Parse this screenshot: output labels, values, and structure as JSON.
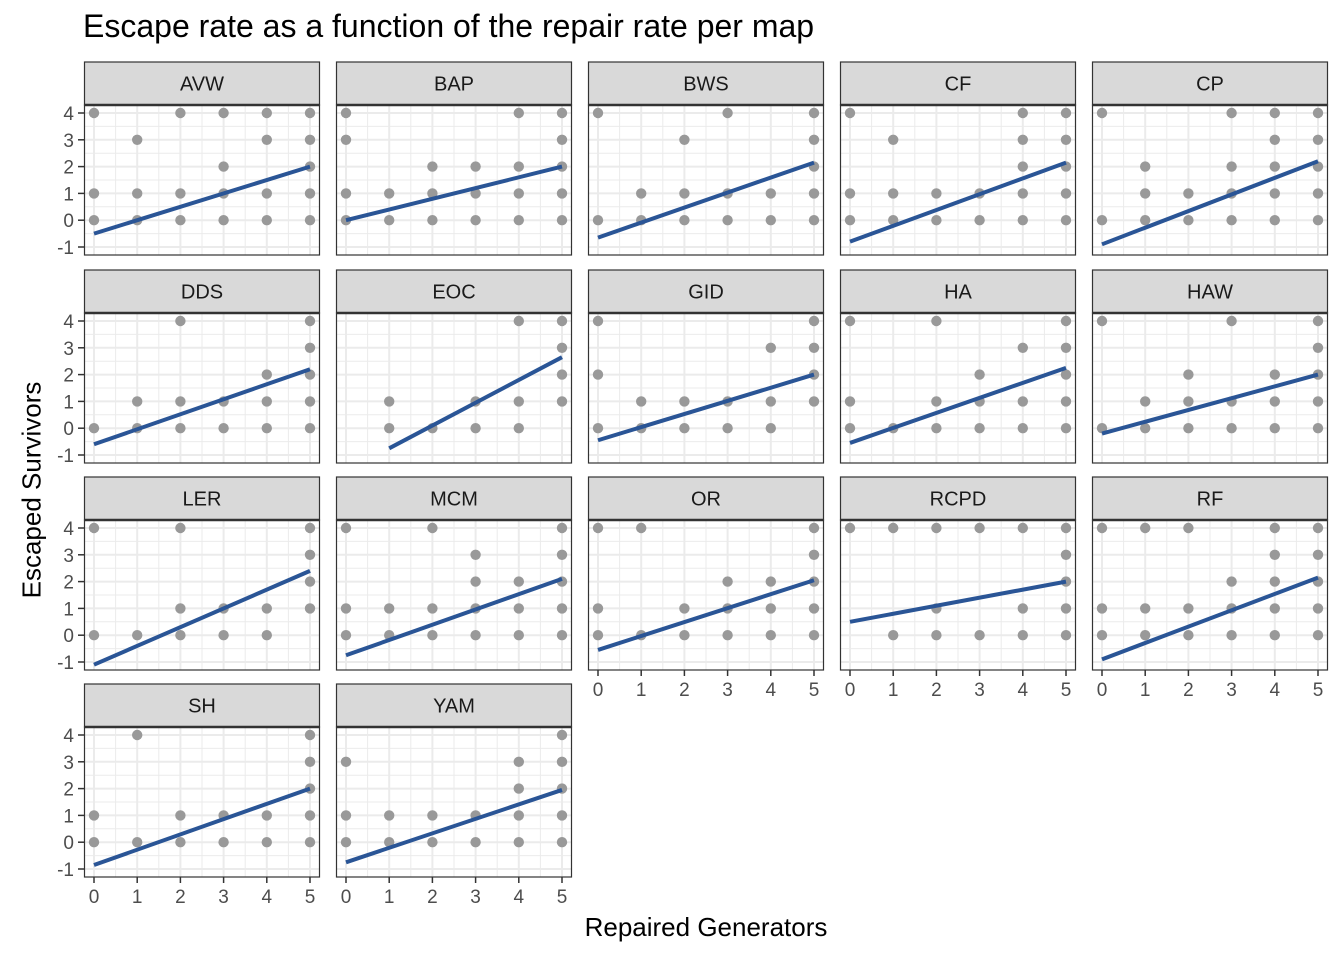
{
  "title": "Escape rate as a function of the repair rate per map",
  "xlabel": "Repaired Generators",
  "ylabel": "Escaped Survivors",
  "colors": {
    "point": "#999999",
    "line": "#2a5596",
    "strip": "#d9d9d9",
    "grid": "#ebebeb",
    "frame": "#333333"
  },
  "chart_data": {
    "type": "scatter",
    "facet_by": "map",
    "xlim": [
      0,
      5
    ],
    "ylim": [
      -1,
      4
    ],
    "x_ticks": [
      0,
      1,
      2,
      3,
      4,
      5
    ],
    "y_ticks": [
      -1,
      0,
      1,
      2,
      3,
      4
    ],
    "grid": true,
    "fit": "linear",
    "panels": [
      {
        "name": "AVW",
        "fit": [
          -0.5,
          2.0
        ],
        "points": [
          [
            0,
            4
          ],
          [
            0,
            1
          ],
          [
            0,
            0
          ],
          [
            1,
            3
          ],
          [
            1,
            1
          ],
          [
            1,
            0
          ],
          [
            2,
            4
          ],
          [
            2,
            1
          ],
          [
            2,
            0
          ],
          [
            3,
            4
          ],
          [
            3,
            2
          ],
          [
            3,
            1
          ],
          [
            3,
            0
          ],
          [
            4,
            4
          ],
          [
            4,
            3
          ],
          [
            4,
            1
          ],
          [
            4,
            0
          ],
          [
            5,
            4
          ],
          [
            5,
            3
          ],
          [
            5,
            2
          ],
          [
            5,
            1
          ],
          [
            5,
            0
          ]
        ]
      },
      {
        "name": "BAP",
        "fit": [
          0.0,
          2.0
        ],
        "points": [
          [
            0,
            4
          ],
          [
            0,
            3
          ],
          [
            0,
            1
          ],
          [
            0,
            0
          ],
          [
            1,
            1
          ],
          [
            1,
            0
          ],
          [
            2,
            2
          ],
          [
            2,
            1
          ],
          [
            2,
            0
          ],
          [
            3,
            2
          ],
          [
            3,
            1
          ],
          [
            3,
            0
          ],
          [
            4,
            4
          ],
          [
            4,
            2
          ],
          [
            4,
            1
          ],
          [
            4,
            0
          ],
          [
            5,
            4
          ],
          [
            5,
            3
          ],
          [
            5,
            2
          ],
          [
            5,
            1
          ],
          [
            5,
            0
          ]
        ]
      },
      {
        "name": "BWS",
        "fit": [
          -0.65,
          2.15
        ],
        "points": [
          [
            0,
            4
          ],
          [
            0,
            0
          ],
          [
            1,
            1
          ],
          [
            1,
            0
          ],
          [
            2,
            3
          ],
          [
            2,
            1
          ],
          [
            2,
            0
          ],
          [
            3,
            4
          ],
          [
            3,
            1
          ],
          [
            3,
            0
          ],
          [
            4,
            1
          ],
          [
            4,
            0
          ],
          [
            5,
            4
          ],
          [
            5,
            3
          ],
          [
            5,
            2
          ],
          [
            5,
            1
          ],
          [
            5,
            0
          ]
        ]
      },
      {
        "name": "CF",
        "fit": [
          -0.8,
          2.15
        ],
        "points": [
          [
            0,
            4
          ],
          [
            0,
            1
          ],
          [
            0,
            0
          ],
          [
            1,
            3
          ],
          [
            1,
            1
          ],
          [
            1,
            0
          ],
          [
            2,
            1
          ],
          [
            2,
            0
          ],
          [
            3,
            1
          ],
          [
            3,
            0
          ],
          [
            4,
            4
          ],
          [
            4,
            3
          ],
          [
            4,
            2
          ],
          [
            4,
            1
          ],
          [
            4,
            0
          ],
          [
            5,
            4
          ],
          [
            5,
            3
          ],
          [
            5,
            2
          ],
          [
            5,
            1
          ],
          [
            5,
            0
          ]
        ]
      },
      {
        "name": "CP",
        "fit": [
          -0.9,
          2.2
        ],
        "points": [
          [
            0,
            4
          ],
          [
            0,
            0
          ],
          [
            1,
            2
          ],
          [
            1,
            1
          ],
          [
            1,
            0
          ],
          [
            2,
            1
          ],
          [
            2,
            0
          ],
          [
            3,
            4
          ],
          [
            3,
            2
          ],
          [
            3,
            1
          ],
          [
            3,
            0
          ],
          [
            4,
            4
          ],
          [
            4,
            3
          ],
          [
            4,
            2
          ],
          [
            4,
            1
          ],
          [
            4,
            0
          ],
          [
            5,
            4
          ],
          [
            5,
            3
          ],
          [
            5,
            2
          ],
          [
            5,
            1
          ],
          [
            5,
            0
          ]
        ]
      },
      {
        "name": "DDS",
        "fit": [
          -0.6,
          2.2
        ],
        "points": [
          [
            0,
            0
          ],
          [
            1,
            1
          ],
          [
            1,
            0
          ],
          [
            2,
            4
          ],
          [
            2,
            1
          ],
          [
            2,
            0
          ],
          [
            3,
            1
          ],
          [
            3,
            0
          ],
          [
            4,
            2
          ],
          [
            4,
            1
          ],
          [
            4,
            0
          ],
          [
            5,
            4
          ],
          [
            5,
            3
          ],
          [
            5,
            2
          ],
          [
            5,
            1
          ],
          [
            5,
            0
          ]
        ]
      },
      {
        "name": "EOC",
        "fit_x": [
          1,
          5
        ],
        "fit": [
          -0.75,
          2.65
        ],
        "points": [
          [
            1,
            1
          ],
          [
            1,
            0
          ],
          [
            2,
            0
          ],
          [
            3,
            1
          ],
          [
            3,
            0
          ],
          [
            4,
            4
          ],
          [
            4,
            1
          ],
          [
            4,
            0
          ],
          [
            5,
            4
          ],
          [
            5,
            3
          ],
          [
            5,
            2
          ],
          [
            5,
            1
          ]
        ]
      },
      {
        "name": "GID",
        "fit": [
          -0.45,
          2.0
        ],
        "points": [
          [
            0,
            4
          ],
          [
            0,
            2
          ],
          [
            0,
            0
          ],
          [
            1,
            1
          ],
          [
            1,
            0
          ],
          [
            2,
            1
          ],
          [
            2,
            0
          ],
          [
            3,
            1
          ],
          [
            3,
            0
          ],
          [
            4,
            3
          ],
          [
            4,
            1
          ],
          [
            4,
            0
          ],
          [
            5,
            4
          ],
          [
            5,
            3
          ],
          [
            5,
            2
          ],
          [
            5,
            1
          ]
        ]
      },
      {
        "name": "HA",
        "fit": [
          -0.55,
          2.25
        ],
        "points": [
          [
            0,
            4
          ],
          [
            0,
            1
          ],
          [
            0,
            0
          ],
          [
            1,
            0
          ],
          [
            2,
            4
          ],
          [
            2,
            1
          ],
          [
            2,
            0
          ],
          [
            3,
            2
          ],
          [
            3,
            1
          ],
          [
            3,
            0
          ],
          [
            4,
            3
          ],
          [
            4,
            1
          ],
          [
            4,
            0
          ],
          [
            5,
            4
          ],
          [
            5,
            3
          ],
          [
            5,
            2
          ],
          [
            5,
            1
          ],
          [
            5,
            0
          ]
        ]
      },
      {
        "name": "HAW",
        "fit": [
          -0.2,
          2.0
        ],
        "points": [
          [
            0,
            4
          ],
          [
            0,
            0
          ],
          [
            1,
            1
          ],
          [
            1,
            0
          ],
          [
            2,
            2
          ],
          [
            2,
            1
          ],
          [
            2,
            0
          ],
          [
            3,
            4
          ],
          [
            3,
            1
          ],
          [
            3,
            0
          ],
          [
            4,
            2
          ],
          [
            4,
            1
          ],
          [
            4,
            0
          ],
          [
            5,
            4
          ],
          [
            5,
            3
          ],
          [
            5,
            2
          ],
          [
            5,
            1
          ],
          [
            5,
            0
          ]
        ]
      },
      {
        "name": "LER",
        "fit": [
          -1.1,
          2.4
        ],
        "points": [
          [
            0,
            4
          ],
          [
            0,
            0
          ],
          [
            1,
            0
          ],
          [
            2,
            4
          ],
          [
            2,
            1
          ],
          [
            2,
            0
          ],
          [
            3,
            1
          ],
          [
            3,
            0
          ],
          [
            4,
            1
          ],
          [
            4,
            0
          ],
          [
            5,
            4
          ],
          [
            5,
            3
          ],
          [
            5,
            2
          ],
          [
            5,
            1
          ]
        ]
      },
      {
        "name": "MCM",
        "fit": [
          -0.75,
          2.1
        ],
        "points": [
          [
            0,
            4
          ],
          [
            0,
            1
          ],
          [
            0,
            0
          ],
          [
            1,
            1
          ],
          [
            1,
            0
          ],
          [
            2,
            4
          ],
          [
            2,
            1
          ],
          [
            2,
            0
          ],
          [
            3,
            3
          ],
          [
            3,
            2
          ],
          [
            3,
            1
          ],
          [
            3,
            0
          ],
          [
            4,
            2
          ],
          [
            4,
            1
          ],
          [
            4,
            0
          ],
          [
            5,
            4
          ],
          [
            5,
            3
          ],
          [
            5,
            2
          ],
          [
            5,
            1
          ],
          [
            5,
            0
          ]
        ]
      },
      {
        "name": "OR",
        "fit": [
          -0.55,
          2.05
        ],
        "points": [
          [
            0,
            4
          ],
          [
            0,
            1
          ],
          [
            0,
            0
          ],
          [
            1,
            4
          ],
          [
            1,
            0
          ],
          [
            2,
            1
          ],
          [
            2,
            0
          ],
          [
            3,
            2
          ],
          [
            3,
            1
          ],
          [
            3,
            0
          ],
          [
            4,
            2
          ],
          [
            4,
            1
          ],
          [
            4,
            0
          ],
          [
            5,
            4
          ],
          [
            5,
            3
          ],
          [
            5,
            2
          ],
          [
            5,
            1
          ],
          [
            5,
            0
          ]
        ]
      },
      {
        "name": "RCPD",
        "fit": [
          0.5,
          2.0
        ],
        "points": [
          [
            0,
            4
          ],
          [
            1,
            4
          ],
          [
            1,
            0
          ],
          [
            2,
            4
          ],
          [
            2,
            1
          ],
          [
            2,
            0
          ],
          [
            3,
            4
          ],
          [
            3,
            0
          ],
          [
            4,
            4
          ],
          [
            4,
            1
          ],
          [
            4,
            0
          ],
          [
            5,
            4
          ],
          [
            5,
            3
          ],
          [
            5,
            2
          ],
          [
            5,
            1
          ],
          [
            5,
            0
          ]
        ]
      },
      {
        "name": "RF",
        "fit": [
          -0.9,
          2.15
        ],
        "points": [
          [
            0,
            4
          ],
          [
            0,
            1
          ],
          [
            0,
            0
          ],
          [
            1,
            4
          ],
          [
            1,
            1
          ],
          [
            1,
            0
          ],
          [
            2,
            4
          ],
          [
            2,
            1
          ],
          [
            2,
            0
          ],
          [
            3,
            2
          ],
          [
            3,
            1
          ],
          [
            3,
            0
          ],
          [
            4,
            4
          ],
          [
            4,
            3
          ],
          [
            4,
            2
          ],
          [
            4,
            1
          ],
          [
            4,
            0
          ],
          [
            5,
            4
          ],
          [
            5,
            3
          ],
          [
            5,
            2
          ],
          [
            5,
            1
          ],
          [
            5,
            0
          ]
        ]
      },
      {
        "name": "SH",
        "fit": [
          -0.85,
          2.0
        ],
        "points": [
          [
            0,
            1
          ],
          [
            0,
            0
          ],
          [
            1,
            4
          ],
          [
            1,
            0
          ],
          [
            2,
            1
          ],
          [
            2,
            0
          ],
          [
            3,
            1
          ],
          [
            3,
            0
          ],
          [
            4,
            1
          ],
          [
            4,
            0
          ],
          [
            5,
            4
          ],
          [
            5,
            3
          ],
          [
            5,
            2
          ],
          [
            5,
            1
          ],
          [
            5,
            0
          ]
        ]
      },
      {
        "name": "YAM",
        "fit": [
          -0.75,
          1.95
        ],
        "points": [
          [
            0,
            3
          ],
          [
            0,
            1
          ],
          [
            0,
            0
          ],
          [
            1,
            1
          ],
          [
            1,
            0
          ],
          [
            2,
            1
          ],
          [
            2,
            0
          ],
          [
            3,
            1
          ],
          [
            3,
            0
          ],
          [
            4,
            3
          ],
          [
            4,
            2
          ],
          [
            4,
            1
          ],
          [
            4,
            0
          ],
          [
            5,
            4
          ],
          [
            5,
            3
          ],
          [
            5,
            2
          ],
          [
            5,
            1
          ],
          [
            5,
            0
          ]
        ]
      }
    ]
  }
}
